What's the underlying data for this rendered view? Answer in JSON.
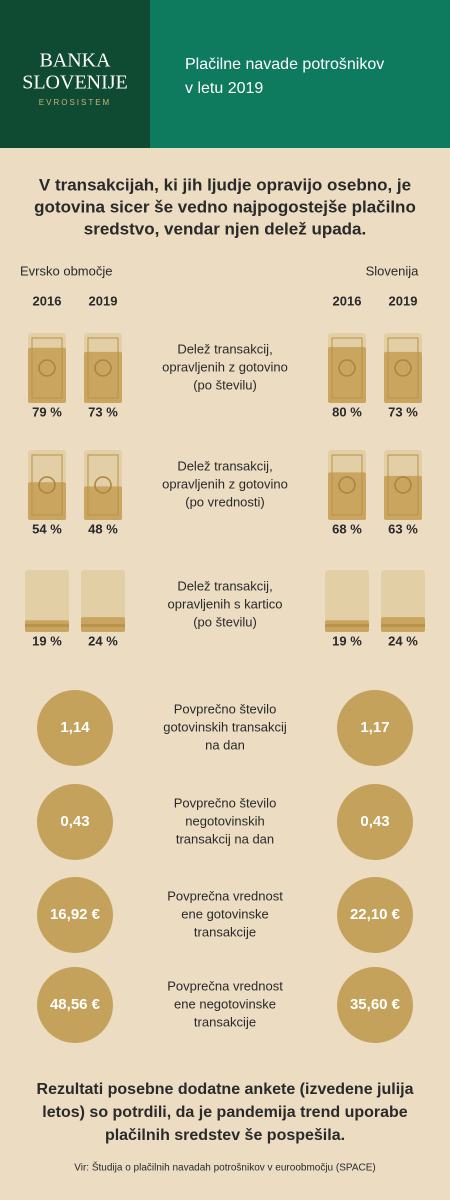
{
  "header": {
    "logo": {
      "line1": "BANKA",
      "line2": "SLOVENIJE",
      "sub": "EVROSISTEM"
    },
    "title": [
      "Plačilne navade potrošnikov",
      "v letu 2019"
    ]
  },
  "headline": [
    "V transakcijah, ki jih ljudje opravijo osebno, je",
    "gotovina sicer še vedno najpogostejše plačilno",
    "sredstvo, vendar njen delež upada."
  ],
  "regions": [
    "Evrsko območje",
    "Slovenija"
  ],
  "years": [
    "2016",
    "2019"
  ],
  "share_rows": [
    {
      "label": [
        "Delež transakcij,",
        "opravljenih z gotovino",
        "(po številu)"
      ],
      "values": [
        {
          "value": 79,
          "label": "79 %"
        },
        {
          "value": 73,
          "label": "73 %"
        },
        {
          "value": 80,
          "label": "80 %"
        },
        {
          "value": 73,
          "label": "73 %"
        }
      ]
    },
    {
      "label": [
        "Delež transakcij,",
        "opravljenih z gotovino",
        "(po vrednosti)"
      ],
      "values": [
        {
          "value": 54,
          "label": "54 %"
        },
        {
          "value": 48,
          "label": "48 %"
        },
        {
          "value": 68,
          "label": "68 %"
        },
        {
          "value": 63,
          "label": "63 %"
        }
      ]
    },
    {
      "label": [
        "Delež transakcij,",
        "opravljenih s kartico",
        "(po številu)"
      ],
      "values": [
        {
          "value": 19,
          "label": "19 %"
        },
        {
          "value": 24,
          "label": "24 %"
        },
        {
          "value": 19,
          "label": "19 %"
        },
        {
          "value": 24,
          "label": "24 %"
        }
      ]
    }
  ],
  "avg_rows": [
    {
      "label": [
        "Povprečno število",
        "gotovinskih transakcij",
        "na dan"
      ],
      "values": [
        "1,14",
        "1,17"
      ]
    },
    {
      "label": [
        "Povprečno število",
        "negotovinskih",
        "transakcij na dan"
      ],
      "values": [
        "0,43",
        "0,43"
      ]
    },
    {
      "label": [
        "Povprečna vrednost",
        "ene gotovinske",
        "transakcije"
      ],
      "values": [
        "16,92 €",
        "22,10 €"
      ]
    },
    {
      "label": [
        "Povprečna vrednost",
        "ene negotovinske",
        "transakcije"
      ],
      "values": [
        "48,56 €",
        "35,60 €"
      ]
    }
  ],
  "footer": [
    "Rezultati posebne dodatne ankete (izvedene julija",
    "letos) so potrdili, da je pandemija trend uporabe",
    "plačilnih sredstev še pospešila."
  ],
  "source": "Vir: Študija o plačilnih navadah potrošnikov v euroobmočju (SPACE)"
}
